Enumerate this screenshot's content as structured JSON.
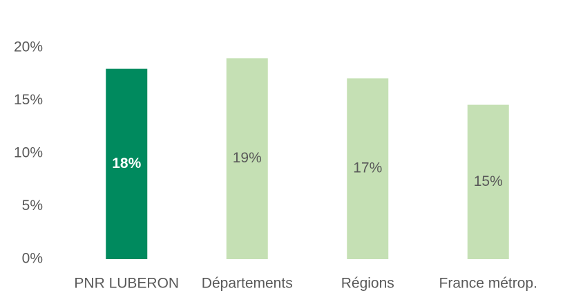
{
  "chart_data": {
    "type": "bar",
    "categories": [
      "PNR LUBERON",
      "Départements",
      "Régions",
      "France métrop."
    ],
    "values": [
      18,
      19,
      17.1,
      14.6
    ],
    "value_labels": [
      "18%",
      "19%",
      "17%",
      "15%"
    ],
    "colors": [
      "#008a5e",
      "#c5e0b4",
      "#c5e0b4",
      "#c5e0b4"
    ],
    "ylim": [
      0,
      20
    ],
    "yticks": [
      {
        "value": 0,
        "label": "0%"
      },
      {
        "value": 5,
        "label": "5%"
      },
      {
        "value": 10,
        "label": "10%"
      },
      {
        "value": 15,
        "label": "15%"
      },
      {
        "value": 20,
        "label": "20%"
      }
    ],
    "grid": false
  }
}
